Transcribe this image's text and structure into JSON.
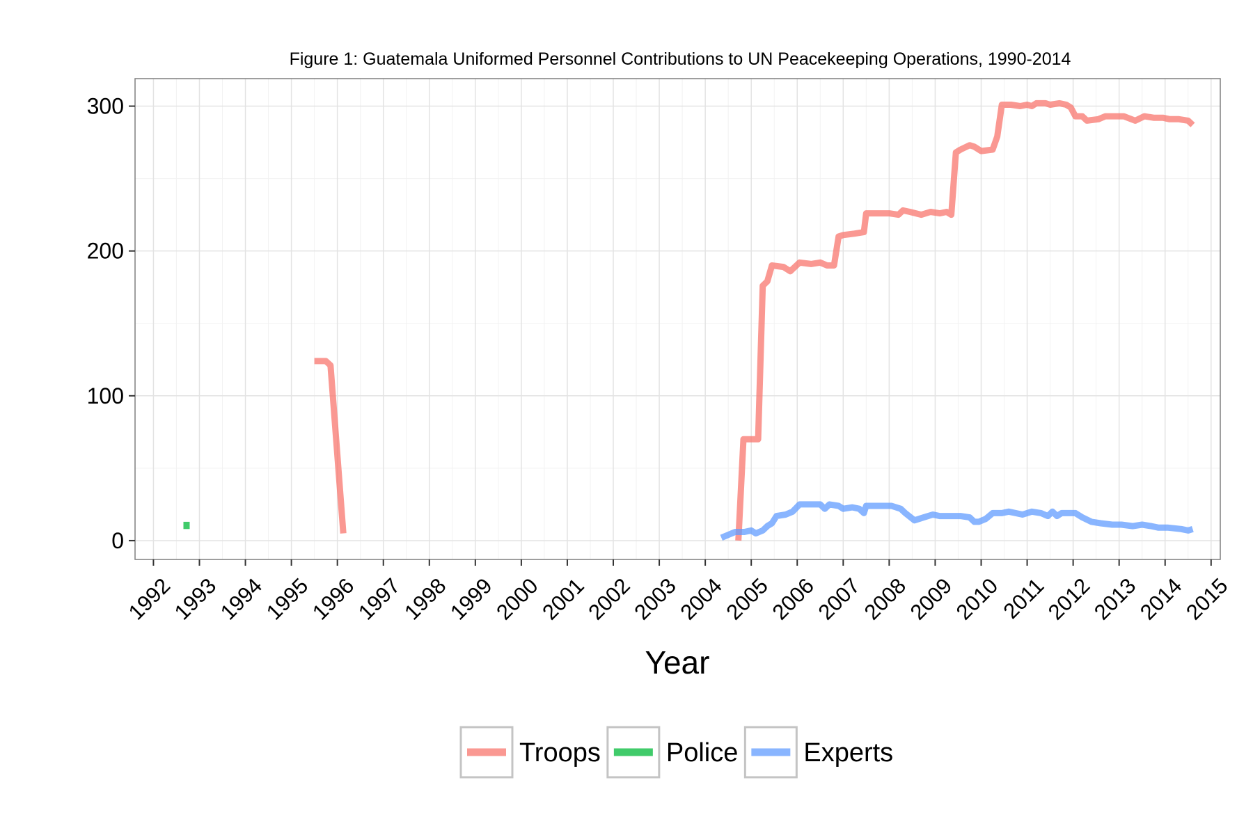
{
  "chart_data": {
    "type": "line",
    "title": "Figure 1: Guatemala Uniformed Personnel Contributions to UN Peacekeeping Operations, 1990-2014",
    "xlabel": "Year",
    "ylabel": "",
    "xlim": [
      1991.6,
      2015.2
    ],
    "ylim": [
      -13,
      319
    ],
    "grid": true,
    "legend_position": "bottom",
    "x_ticks": [
      "1992",
      "1993",
      "1994",
      "1995",
      "1996",
      "1997",
      "1998",
      "1999",
      "2000",
      "2001",
      "2002",
      "2003",
      "2004",
      "2005",
      "2006",
      "2007",
      "2008",
      "2009",
      "2010",
      "2011",
      "2012",
      "2013",
      "2014",
      "2015"
    ],
    "y_ticks": [
      "0",
      "100",
      "200",
      "300"
    ],
    "series": [
      {
        "name": "Troops",
        "color": "#F8766D",
        "segments": [
          [
            [
              1995.5,
              124
            ],
            [
              1995.75,
              124
            ],
            [
              1995.85,
              121
            ],
            [
              1996.13,
              5
            ]
          ],
          [
            [
              2004.72,
              0
            ],
            [
              2004.83,
              70
            ],
            [
              2005.0,
              70
            ],
            [
              2005.15,
              70
            ],
            [
              2005.25,
              176
            ],
            [
              2005.35,
              179
            ],
            [
              2005.45,
              190
            ],
            [
              2005.7,
              189
            ],
            [
              2005.85,
              186
            ],
            [
              2006.05,
              192
            ],
            [
              2006.3,
              191
            ],
            [
              2006.5,
              192
            ],
            [
              2006.65,
              190
            ],
            [
              2006.8,
              190
            ],
            [
              2006.9,
              210
            ],
            [
              2007.0,
              211
            ],
            [
              2007.25,
              212
            ],
            [
              2007.45,
              213
            ],
            [
              2007.5,
              226
            ],
            [
              2007.7,
              226
            ],
            [
              2008.0,
              226
            ],
            [
              2008.2,
              225
            ],
            [
              2008.3,
              228
            ],
            [
              2008.45,
              227
            ],
            [
              2008.7,
              225
            ],
            [
              2008.9,
              227
            ],
            [
              2009.1,
              226
            ],
            [
              2009.25,
              227
            ],
            [
              2009.35,
              225
            ],
            [
              2009.45,
              268
            ],
            [
              2009.55,
              270
            ],
            [
              2009.75,
              273
            ],
            [
              2009.85,
              272
            ],
            [
              2010.0,
              269
            ],
            [
              2010.25,
              270
            ],
            [
              2010.35,
              279
            ],
            [
              2010.45,
              301
            ],
            [
              2010.65,
              301
            ],
            [
              2010.85,
              300
            ],
            [
              2011.0,
              301
            ],
            [
              2011.1,
              300
            ],
            [
              2011.2,
              302
            ],
            [
              2011.4,
              302
            ],
            [
              2011.5,
              301
            ],
            [
              2011.7,
              302
            ],
            [
              2011.85,
              301
            ],
            [
              2011.95,
              299
            ],
            [
              2012.05,
              293
            ],
            [
              2012.2,
              293
            ],
            [
              2012.3,
              290
            ],
            [
              2012.55,
              291
            ],
            [
              2012.7,
              293
            ],
            [
              2012.9,
              293
            ],
            [
              2013.1,
              293
            ],
            [
              2013.35,
              290
            ],
            [
              2013.55,
              293
            ],
            [
              2013.75,
              292
            ],
            [
              2013.95,
              292
            ],
            [
              2014.1,
              291
            ],
            [
              2014.3,
              291
            ],
            [
              2014.5,
              290
            ],
            [
              2014.6,
              287
            ]
          ]
        ]
      },
      {
        "name": "Police",
        "color": "#00BA38",
        "segments": [
          [
            [
              1992.72,
              8
            ],
            [
              1992.72,
              13
            ]
          ]
        ]
      },
      {
        "name": "Experts",
        "color": "#619CFF",
        "segments": [
          [
            [
              2004.35,
              2
            ],
            [
              2004.5,
              4
            ],
            [
              2004.65,
              6
            ],
            [
              2004.85,
              6
            ],
            [
              2005.0,
              7
            ],
            [
              2005.1,
              5
            ],
            [
              2005.25,
              7
            ],
            [
              2005.35,
              10
            ],
            [
              2005.45,
              12
            ],
            [
              2005.55,
              17
            ],
            [
              2005.75,
              18
            ],
            [
              2005.9,
              20
            ],
            [
              2006.05,
              25
            ],
            [
              2006.3,
              25
            ],
            [
              2006.5,
              25
            ],
            [
              2006.6,
              22
            ],
            [
              2006.7,
              25
            ],
            [
              2006.9,
              24
            ],
            [
              2007.0,
              22
            ],
            [
              2007.2,
              23
            ],
            [
              2007.35,
              22
            ],
            [
              2007.45,
              19
            ],
            [
              2007.5,
              24
            ],
            [
              2007.7,
              24
            ],
            [
              2007.9,
              24
            ],
            [
              2008.05,
              24
            ],
            [
              2008.25,
              22
            ],
            [
              2008.35,
              19
            ],
            [
              2008.55,
              14
            ],
            [
              2008.75,
              16
            ],
            [
              2008.95,
              18
            ],
            [
              2009.1,
              17
            ],
            [
              2009.3,
              17
            ],
            [
              2009.55,
              17
            ],
            [
              2009.75,
              16
            ],
            [
              2009.85,
              13
            ],
            [
              2009.95,
              13
            ],
            [
              2010.1,
              15
            ],
            [
              2010.25,
              19
            ],
            [
              2010.45,
              19
            ],
            [
              2010.6,
              20
            ],
            [
              2010.75,
              19
            ],
            [
              2010.9,
              18
            ],
            [
              2011.1,
              20
            ],
            [
              2011.3,
              19
            ],
            [
              2011.45,
              17
            ],
            [
              2011.55,
              20
            ],
            [
              2011.65,
              17
            ],
            [
              2011.75,
              19
            ],
            [
              2011.9,
              19
            ],
            [
              2012.05,
              19
            ],
            [
              2012.2,
              16
            ],
            [
              2012.4,
              13
            ],
            [
              2012.6,
              12
            ],
            [
              2012.85,
              11
            ],
            [
              2013.05,
              11
            ],
            [
              2013.3,
              10
            ],
            [
              2013.5,
              11
            ],
            [
              2013.7,
              10
            ],
            [
              2013.85,
              9
            ],
            [
              2014.05,
              9
            ],
            [
              2014.35,
              8
            ],
            [
              2014.5,
              7
            ],
            [
              2014.6,
              8
            ]
          ]
        ]
      }
    ]
  }
}
